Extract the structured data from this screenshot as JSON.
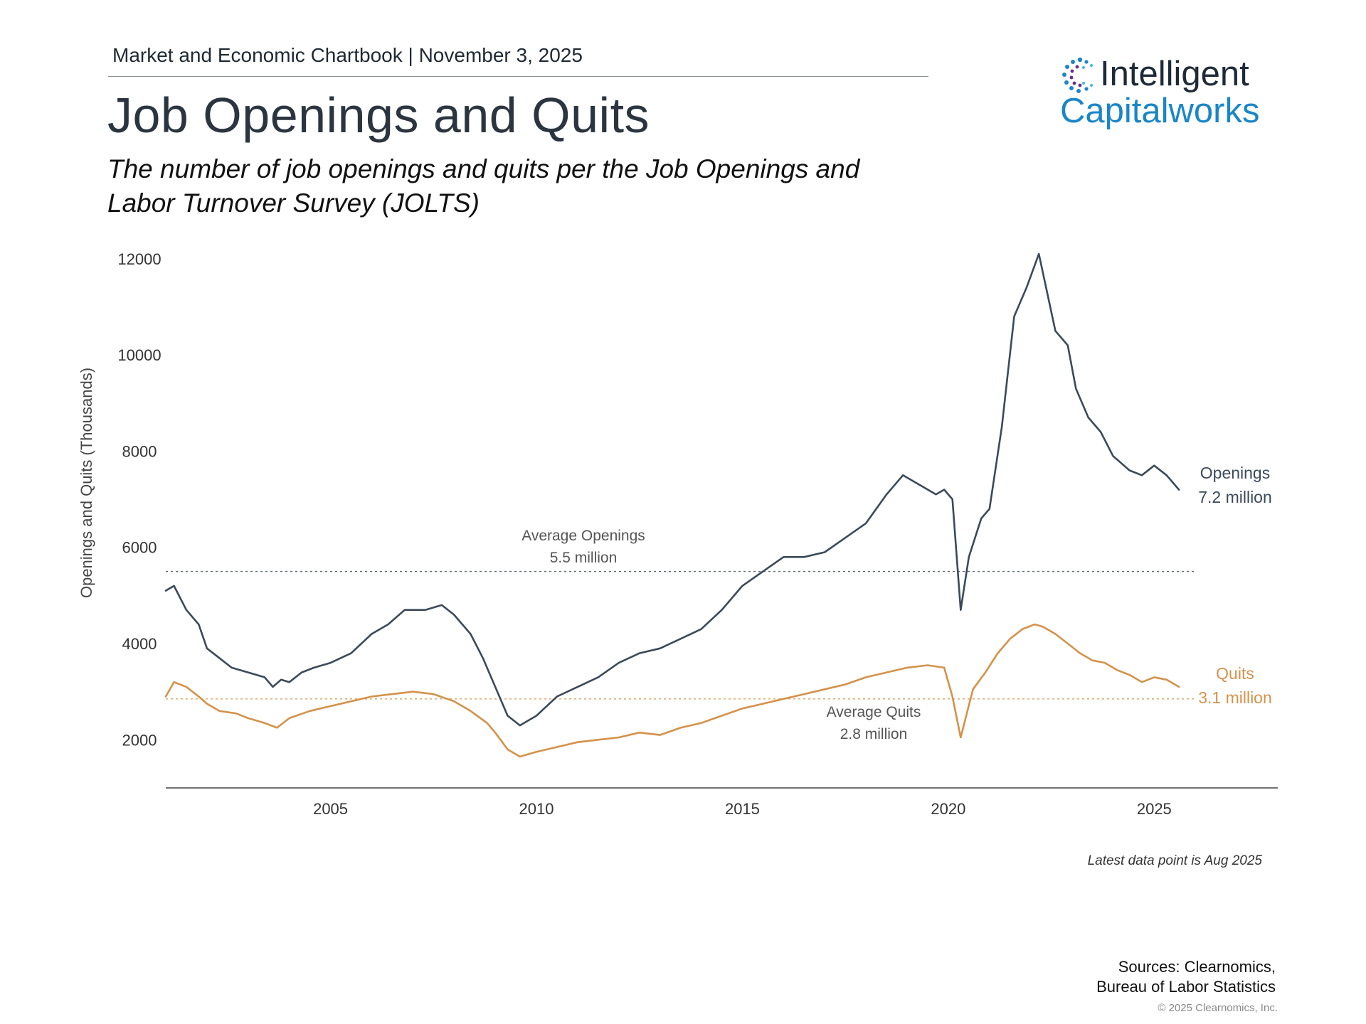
{
  "header": {
    "chartbook": "Market and Economic Chartbook | November 3, 2025",
    "title": "Job Openings and Quits",
    "subtitle": "The number of job openings and quits per the Job Openings and Labor Turnover Survey (JOLTS)"
  },
  "logo": {
    "word1": "Intelligent",
    "word2": "Capitalworks"
  },
  "footer": {
    "note": "Latest data point is Aug 2025",
    "sources_line1": "Sources: Clearnomics,",
    "sources_line2": "Bureau of Labor Statistics",
    "copyright": "© 2025 Clearnomics, Inc."
  },
  "colors": {
    "openings": "#3b4a5a",
    "quits": "#d4924a",
    "axis": "#444444"
  },
  "chart_data": {
    "type": "line",
    "ylabel": "Openings and Quits (Thousands)",
    "xlim": [
      2001.0,
      2028.0
    ],
    "ylim": [
      1000,
      12500
    ],
    "yticks": [
      2000,
      4000,
      6000,
      8000,
      10000,
      12000
    ],
    "xticks": [
      2005,
      2010,
      2015,
      2020,
      2025
    ],
    "averages": [
      {
        "label1": "Average Openings",
        "label2": "5.5 million",
        "value": 5500,
        "color": "#3b4a5a"
      },
      {
        "label1": "Average Quits",
        "label2": "2.8 million",
        "value": 2850,
        "color": "#d4924a"
      }
    ],
    "series": [
      {
        "name": "Openings",
        "end_label": "7.2 million",
        "color": "#3b4a5a",
        "x": [
          2001.0,
          2001.2,
          2001.5,
          2001.8,
          2002.0,
          2002.3,
          2002.6,
          2003.0,
          2003.4,
          2003.6,
          2003.8,
          2004.0,
          2004.3,
          2004.6,
          2005.0,
          2005.5,
          2006.0,
          2006.4,
          2006.8,
          2007.3,
          2007.7,
          2008.0,
          2008.4,
          2008.7,
          2009.0,
          2009.3,
          2009.6,
          2010.0,
          2010.5,
          2011.0,
          2011.5,
          2012.0,
          2012.5,
          2013.0,
          2013.5,
          2014.0,
          2014.5,
          2015.0,
          2015.5,
          2016.0,
          2016.5,
          2017.0,
          2017.5,
          2018.0,
          2018.5,
          2018.9,
          2019.3,
          2019.7,
          2019.9,
          2020.1,
          2020.3,
          2020.5,
          2020.8,
          2021.0,
          2021.3,
          2021.6,
          2021.9,
          2022.2,
          2022.4,
          2022.6,
          2022.9,
          2023.1,
          2023.4,
          2023.7,
          2024.0,
          2024.4,
          2024.7,
          2025.0,
          2025.3,
          2025.6
        ],
        "values": [
          5100,
          5200,
          4700,
          4400,
          3900,
          3700,
          3500,
          3400,
          3300,
          3100,
          3250,
          3200,
          3400,
          3500,
          3600,
          3800,
          4200,
          4400,
          4700,
          4700,
          4800,
          4600,
          4200,
          3700,
          3100,
          2500,
          2300,
          2500,
          2900,
          3100,
          3300,
          3600,
          3800,
          3900,
          4100,
          4300,
          4700,
          5200,
          5500,
          5800,
          5800,
          5900,
          6200,
          6500,
          7100,
          7500,
          7300,
          7100,
          7200,
          7000,
          4700,
          5800,
          6600,
          6800,
          8500,
          10800,
          11400,
          12100,
          11300,
          10500,
          10200,
          9300,
          8700,
          8400,
          7900,
          7600,
          7500,
          7700,
          7500,
          7200
        ]
      },
      {
        "name": "Quits",
        "end_label": "3.1 million",
        "color": "#d4924a",
        "x": [
          2001.0,
          2001.2,
          2001.5,
          2001.8,
          2002.0,
          2002.3,
          2002.7,
          2003.0,
          2003.4,
          2003.7,
          2004.0,
          2004.5,
          2005.0,
          2005.5,
          2006.0,
          2006.5,
          2007.0,
          2007.5,
          2008.0,
          2008.4,
          2008.8,
          2009.0,
          2009.3,
          2009.6,
          2010.0,
          2010.5,
          2011.0,
          2011.5,
          2012.0,
          2012.5,
          2013.0,
          2013.5,
          2014.0,
          2014.5,
          2015.0,
          2015.5,
          2016.0,
          2016.5,
          2017.0,
          2017.5,
          2018.0,
          2018.5,
          2019.0,
          2019.5,
          2019.9,
          2020.1,
          2020.3,
          2020.6,
          2020.9,
          2021.2,
          2021.5,
          2021.8,
          2022.1,
          2022.3,
          2022.6,
          2022.9,
          2023.2,
          2023.5,
          2023.8,
          2024.1,
          2024.4,
          2024.7,
          2025.0,
          2025.3,
          2025.6
        ],
        "values": [
          2900,
          3200,
          3100,
          2900,
          2750,
          2600,
          2550,
          2450,
          2350,
          2250,
          2450,
          2600,
          2700,
          2800,
          2900,
          2950,
          3000,
          2950,
          2800,
          2600,
          2350,
          2150,
          1800,
          1650,
          1750,
          1850,
          1950,
          2000,
          2050,
          2150,
          2100,
          2250,
          2350,
          2500,
          2650,
          2750,
          2850,
          2950,
          3050,
          3150,
          3300,
          3400,
          3500,
          3550,
          3500,
          2900,
          2050,
          3050,
          3400,
          3800,
          4100,
          4300,
          4400,
          4350,
          4200,
          4000,
          3800,
          3650,
          3600,
          3450,
          3350,
          3200,
          3300,
          3250,
          3100
        ]
      }
    ]
  }
}
